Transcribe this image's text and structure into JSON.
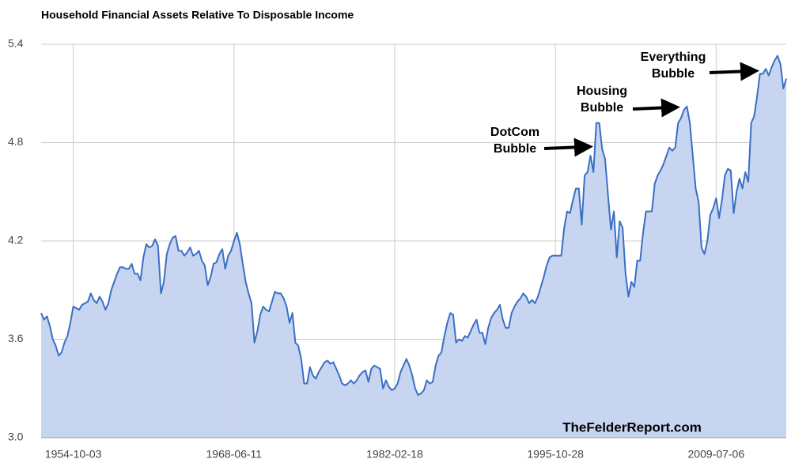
{
  "chart_data": {
    "type": "area",
    "title": "Household Financial Assets Relative To Disposable Income",
    "categories": [
      null,
      null,
      null,
      null,
      null,
      null,
      null,
      null,
      null,
      null,
      null,
      "1954-10-03",
      null,
      null,
      null,
      null,
      null,
      null,
      null,
      null,
      null,
      null,
      null,
      null,
      null,
      null,
      null,
      null,
      null,
      null,
      null,
      null,
      null,
      null,
      null,
      null,
      null,
      null,
      null,
      null,
      null,
      null,
      null,
      null,
      null,
      null,
      null,
      null,
      null,
      null,
      null,
      null,
      null,
      null,
      null,
      null,
      null,
      null,
      null,
      null,
      null,
      null,
      null,
      null,
      null,
      null,
      "1968-06-11",
      null,
      null,
      null,
      null,
      null,
      null,
      null,
      null,
      null,
      null,
      null,
      null,
      null,
      null,
      null,
      null,
      null,
      null,
      null,
      null,
      null,
      null,
      null,
      null,
      null,
      null,
      null,
      null,
      null,
      null,
      null,
      null,
      null,
      null,
      null,
      null,
      null,
      null,
      null,
      null,
      null,
      null,
      null,
      null,
      null,
      null,
      null,
      null,
      null,
      null,
      null,
      null,
      null,
      null,
      "1982-02-18",
      null,
      null,
      null,
      null,
      null,
      null,
      null,
      null,
      null,
      null,
      null,
      null,
      null,
      null,
      null,
      null,
      null,
      null,
      null,
      null,
      null,
      null,
      null,
      null,
      null,
      null,
      null,
      null,
      null,
      null,
      null,
      null,
      null,
      null,
      null,
      null,
      null,
      null,
      null,
      null,
      null,
      null,
      null,
      null,
      null,
      null,
      null,
      null,
      null,
      null,
      null,
      null,
      null,
      null,
      "1995-10-28",
      null,
      null,
      null,
      null,
      null,
      null,
      null,
      null,
      null,
      null,
      null,
      null,
      null,
      null,
      null,
      null,
      null,
      null,
      null,
      null,
      null,
      null,
      null,
      null,
      null,
      null,
      null,
      null,
      null,
      null,
      null,
      null,
      null,
      null,
      null,
      null,
      null,
      null,
      null,
      null,
      null,
      null,
      null,
      null,
      null,
      null,
      null,
      null,
      null,
      null,
      null,
      null,
      null,
      null,
      "2009-07-06",
      null,
      null,
      null,
      null,
      null,
      null,
      null,
      null,
      null,
      null,
      null,
      null,
      null,
      null,
      null,
      null,
      null,
      null,
      null,
      null,
      null,
      null,
      null,
      null
    ],
    "values": [
      3.76,
      3.72,
      3.74,
      3.68,
      3.6,
      3.56,
      3.5,
      3.52,
      3.58,
      3.62,
      3.7,
      3.8,
      3.79,
      3.78,
      3.81,
      3.82,
      3.83,
      3.88,
      3.84,
      3.82,
      3.86,
      3.83,
      3.78,
      3.82,
      3.9,
      3.95,
      4.0,
      4.04,
      4.04,
      4.03,
      4.03,
      4.06,
      4.0,
      4.0,
      3.96,
      4.1,
      4.18,
      4.16,
      4.17,
      4.21,
      4.17,
      3.88,
      3.95,
      4.12,
      4.18,
      4.22,
      4.23,
      4.14,
      4.14,
      4.11,
      4.13,
      4.16,
      4.11,
      4.12,
      4.14,
      4.08,
      4.05,
      3.93,
      3.98,
      4.06,
      4.07,
      4.12,
      4.15,
      4.03,
      4.11,
      4.14,
      4.2,
      4.25,
      4.18,
      4.06,
      3.95,
      3.88,
      3.82,
      3.58,
      3.65,
      3.75,
      3.8,
      3.78,
      3.77,
      3.83,
      3.89,
      3.88,
      3.88,
      3.85,
      3.8,
      3.7,
      3.76,
      3.58,
      3.56,
      3.48,
      3.33,
      3.33,
      3.43,
      3.38,
      3.36,
      3.4,
      3.43,
      3.46,
      3.47,
      3.45,
      3.46,
      3.42,
      3.38,
      3.33,
      3.32,
      3.33,
      3.35,
      3.33,
      3.35,
      3.38,
      3.4,
      3.41,
      3.34,
      3.42,
      3.44,
      3.43,
      3.42,
      3.3,
      3.35,
      3.31,
      3.29,
      3.3,
      3.33,
      3.4,
      3.44,
      3.48,
      3.44,
      3.38,
      3.3,
      3.26,
      3.27,
      3.29,
      3.35,
      3.33,
      3.34,
      3.44,
      3.5,
      3.52,
      3.62,
      3.7,
      3.76,
      3.75,
      3.58,
      3.6,
      3.59,
      3.62,
      3.61,
      3.65,
      3.69,
      3.72,
      3.64,
      3.64,
      3.57,
      3.67,
      3.73,
      3.76,
      3.78,
      3.81,
      3.72,
      3.67,
      3.67,
      3.76,
      3.8,
      3.83,
      3.85,
      3.88,
      3.86,
      3.82,
      3.84,
      3.82,
      3.86,
      3.92,
      3.98,
      4.05,
      4.1,
      4.11,
      4.11,
      4.11,
      4.11,
      4.28,
      4.38,
      4.37,
      4.45,
      4.52,
      4.52,
      4.3,
      4.6,
      4.62,
      4.72,
      4.62,
      4.92,
      4.92,
      4.76,
      4.7,
      4.48,
      4.27,
      4.38,
      4.1,
      4.32,
      4.28,
      4.0,
      3.86,
      3.95,
      3.92,
      4.08,
      4.08,
      4.25,
      4.38,
      4.38,
      4.38,
      4.55,
      4.6,
      4.63,
      4.67,
      4.72,
      4.77,
      4.75,
      4.77,
      4.92,
      4.95,
      5.0,
      5.02,
      4.92,
      4.72,
      4.52,
      4.44,
      4.16,
      4.12,
      4.2,
      4.36,
      4.4,
      4.46,
      4.34,
      4.45,
      4.6,
      4.64,
      4.63,
      4.37,
      4.5,
      4.58,
      4.52,
      4.62,
      4.56,
      4.92,
      4.96,
      5.08,
      5.22,
      5.22,
      5.25,
      5.21,
      5.26,
      5.3,
      5.33,
      5.28,
      5.13,
      5.19
    ],
    "color": "#3a6fc4",
    "fill_color": "#c5d3f0",
    "ylim": [
      3,
      5.4
    ],
    "yticks": [
      {
        "value": 3,
        "label": "3.0"
      },
      3.6,
      4.2,
      4.8,
      5.4
    ],
    "grid": true,
    "annotations": [
      {
        "lines": [
          "DotCom",
          "Bubble"
        ]
      },
      {
        "lines": [
          "Housing",
          "Bubble"
        ]
      },
      {
        "lines": [
          "Everything",
          "Bubble"
        ]
      }
    ],
    "watermark": "TheFelderReport.com"
  }
}
